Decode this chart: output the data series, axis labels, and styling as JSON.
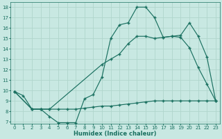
{
  "xlabel": "Humidex (Indice chaleur)",
  "bg_color": "#c8e8e2",
  "grid_color": "#b0d5cc",
  "line_color": "#1a7060",
  "xlim_min": -0.5,
  "xlim_max": 23.5,
  "ylim_min": 6.8,
  "ylim_max": 18.5,
  "xticks": [
    0,
    1,
    2,
    3,
    4,
    5,
    6,
    7,
    8,
    9,
    10,
    11,
    12,
    13,
    14,
    15,
    16,
    17,
    18,
    19,
    20,
    21,
    22,
    23
  ],
  "yticks": [
    7,
    8,
    9,
    10,
    11,
    12,
    13,
    14,
    15,
    16,
    17,
    18
  ],
  "line1_x": [
    0,
    1,
    2,
    3,
    4,
    10,
    11,
    12,
    13,
    14,
    15,
    16,
    17,
    18,
    19,
    20,
    21,
    22,
    23
  ],
  "line1_y": [
    9.9,
    9.5,
    8.2,
    8.2,
    8.2,
    12.5,
    13.0,
    13.5,
    14.5,
    15.2,
    15.2,
    15.0,
    15.1,
    15.2,
    15.1,
    14.1,
    12.2,
    10.6,
    9.0
  ],
  "line2_x": [
    0,
    2,
    3,
    4,
    5,
    6,
    7,
    8,
    9,
    10,
    11,
    12,
    13,
    14,
    15,
    16,
    17,
    18,
    19,
    20,
    21,
    22,
    23
  ],
  "line2_y": [
    9.9,
    8.2,
    8.2,
    7.5,
    6.9,
    6.9,
    6.9,
    9.2,
    9.6,
    11.3,
    15.0,
    16.3,
    16.5,
    18.0,
    18.0,
    17.0,
    15.1,
    15.2,
    15.3,
    16.5,
    15.2,
    13.2,
    9.0
  ],
  "line3_x": [
    0,
    2,
    3,
    4,
    5,
    6,
    7,
    8,
    9,
    10,
    11,
    12,
    13,
    14,
    15,
    16,
    17,
    18,
    19,
    20,
    21,
    22,
    23
  ],
  "line3_y": [
    9.9,
    8.2,
    8.2,
    8.2,
    8.2,
    8.2,
    8.2,
    8.3,
    8.4,
    8.5,
    8.5,
    8.6,
    8.7,
    8.8,
    8.9,
    9.0,
    9.0,
    9.0,
    9.0,
    9.0,
    9.0,
    9.0,
    9.0
  ],
  "marker_size": 2.0,
  "linewidth": 0.85,
  "tick_fontsize": 5.0,
  "xlabel_fontsize": 6.0
}
